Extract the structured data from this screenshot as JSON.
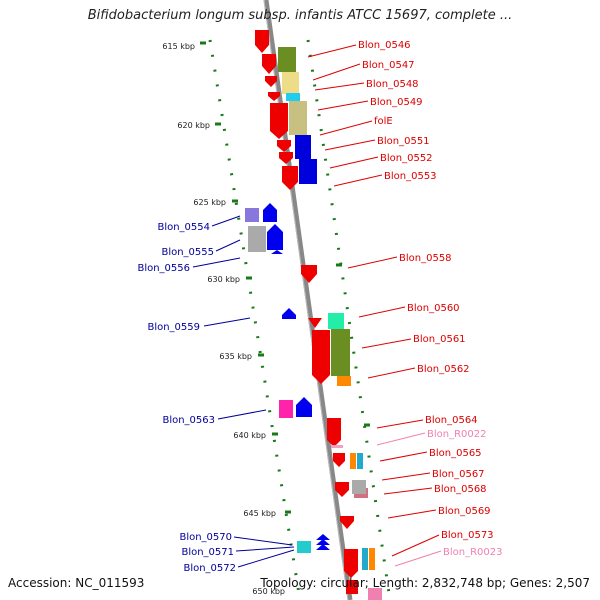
{
  "title": "Bifidobacterium longum subsp. infantis ATCC 15697, complete ...",
  "accession": "Accession: NC_011593",
  "topology": "Topology: circular; Length: 2,832,748 bp; Genes: 2,507",
  "ruler": [
    "615 kbp",
    "620 kbp",
    "625 kbp",
    "630 kbp",
    "635 kbp",
    "640 kbp",
    "645 kbp",
    "650 kbp"
  ],
  "right_labels": [
    {
      "text": "Blon_0546",
      "color": "#dd0000"
    },
    {
      "text": "Blon_0547",
      "color": "#dd0000"
    },
    {
      "text": "Blon_0548",
      "color": "#dd0000"
    },
    {
      "text": "Blon_0549",
      "color": "#dd0000"
    },
    {
      "text": "folE",
      "color": "#dd0000"
    },
    {
      "text": "Blon_0551",
      "color": "#dd0000"
    },
    {
      "text": "Blon_0552",
      "color": "#dd0000"
    },
    {
      "text": "Blon_0553",
      "color": "#dd0000"
    },
    {
      "text": "Blon_0558",
      "color": "#dd0000"
    },
    {
      "text": "Blon_0560",
      "color": "#dd0000"
    },
    {
      "text": "Blon_0561",
      "color": "#dd0000"
    },
    {
      "text": "Blon_0562",
      "color": "#dd0000"
    },
    {
      "text": "Blon_0564",
      "color": "#dd0000"
    },
    {
      "text": "Blon_R0022",
      "color": "#f080b0"
    },
    {
      "text": "Blon_0565",
      "color": "#dd0000"
    },
    {
      "text": "Blon_0567",
      "color": "#dd0000"
    },
    {
      "text": "Blon_0568",
      "color": "#dd0000"
    },
    {
      "text": "Blon_0569",
      "color": "#dd0000"
    },
    {
      "text": "Blon_0573",
      "color": "#dd0000"
    },
    {
      "text": "Blon_R0023",
      "color": "#f080b0"
    }
  ],
  "left_labels": [
    {
      "text": "Blon_0554",
      "color": "#000099"
    },
    {
      "text": "Blon_0555",
      "color": "#000099"
    },
    {
      "text": "Blon_0556",
      "color": "#000099"
    },
    {
      "text": "Blon_0559",
      "color": "#000099"
    },
    {
      "text": "Blon_0563",
      "color": "#000099"
    },
    {
      "text": "Blon_0570",
      "color": "#000099"
    },
    {
      "text": "Blon_0571",
      "color": "#000099"
    },
    {
      "text": "Blon_0572",
      "color": "#000099"
    }
  ],
  "colors": {
    "forward_gene": "#ee0000",
    "reverse_gene": "#0000ee",
    "rna_gene": "#f080b0",
    "backbone": "#888888",
    "tick": "#1a7a1a"
  }
}
